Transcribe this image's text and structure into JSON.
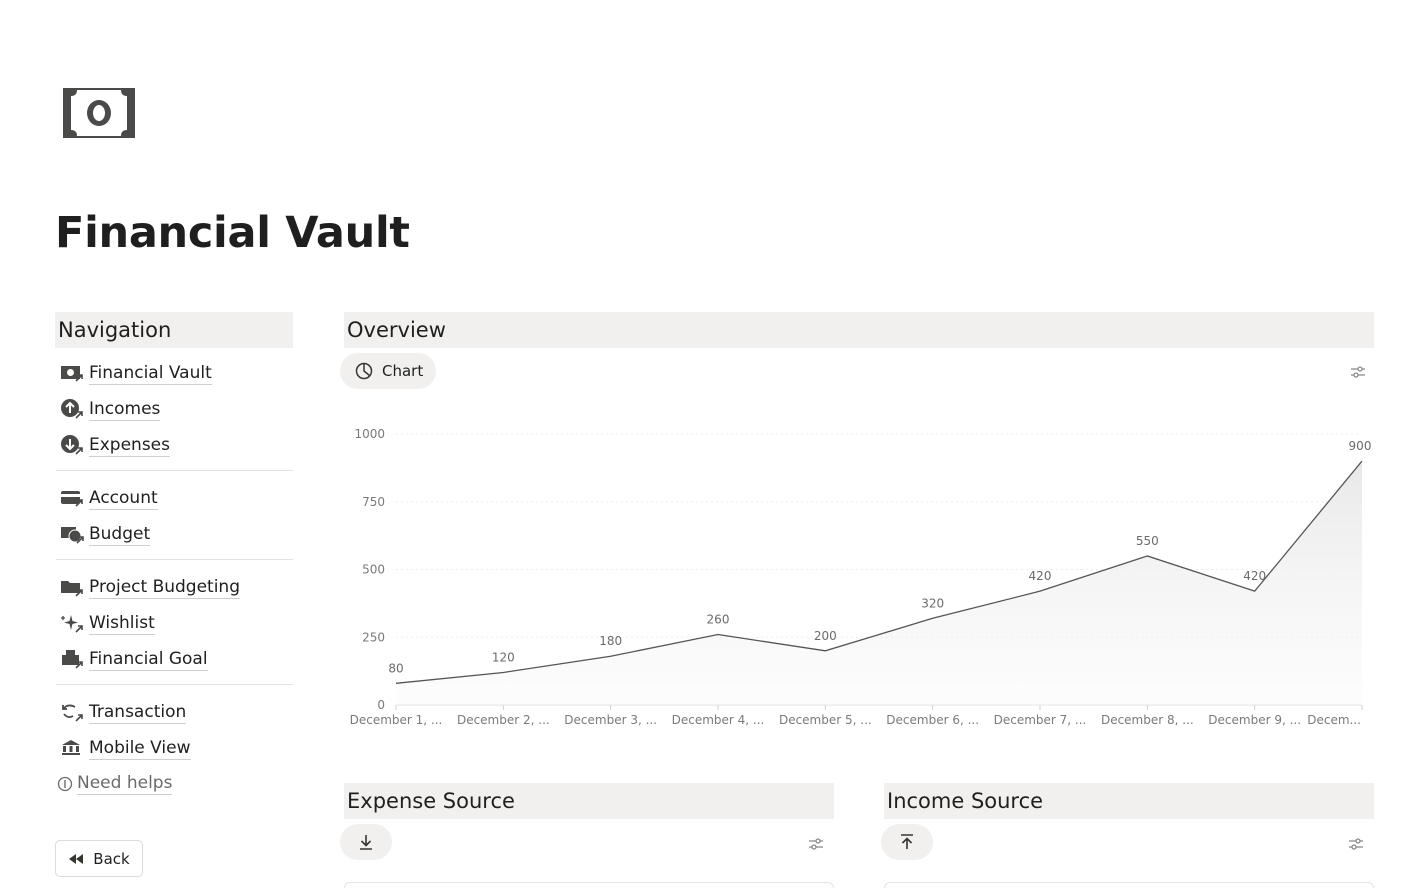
{
  "page": {
    "title": "Financial Vault",
    "icon": "money-bill-icon"
  },
  "navigation": {
    "heading": "Navigation",
    "groups": [
      [
        {
          "label": "Financial Vault",
          "icon": "money-link-icon"
        },
        {
          "label": "Incomes",
          "icon": "income-arrow-icon"
        },
        {
          "label": "Expenses",
          "icon": "expense-arrow-icon"
        }
      ],
      [
        {
          "label": "Account",
          "icon": "card-link-icon"
        },
        {
          "label": "Budget",
          "icon": "budget-link-icon"
        }
      ],
      [
        {
          "label": "Project Budgeting",
          "icon": "folder-link-icon"
        },
        {
          "label": "Wishlist",
          "icon": "sparkle-link-icon"
        },
        {
          "label": "Financial Goal",
          "icon": "goal-link-icon"
        }
      ],
      [
        {
          "label": "Transaction",
          "icon": "transaction-link-icon"
        },
        {
          "label": "Mobile View",
          "icon": "bank-link-icon"
        }
      ]
    ],
    "help": "Need helps",
    "back": "Back"
  },
  "overview": {
    "heading": "Overview",
    "view_label": "Chart"
  },
  "expense_source": {
    "heading": "Expense Source"
  },
  "income_source": {
    "heading": "Income Source"
  },
  "chart_data": {
    "type": "area",
    "categories": [
      "December 1, ...",
      "December 2, ...",
      "December 3, ...",
      "December 4, ...",
      "December 5, ...",
      "December 6, ...",
      "December 7, ...",
      "December 8, ...",
      "December 9, ...",
      "Decem..."
    ],
    "values": [
      80,
      120,
      180,
      260,
      200,
      320,
      420,
      550,
      420,
      900
    ],
    "data_labels": [
      "80",
      "120",
      "180",
      "260",
      "200",
      "320",
      "420",
      "550",
      "420",
      "900"
    ],
    "yticks": [
      "0",
      "250",
      "500",
      "750",
      "1000"
    ],
    "ylim": [
      0,
      1000
    ],
    "grid": true,
    "colors": {
      "line": "#555555",
      "fill": "#e9e9e9"
    }
  }
}
